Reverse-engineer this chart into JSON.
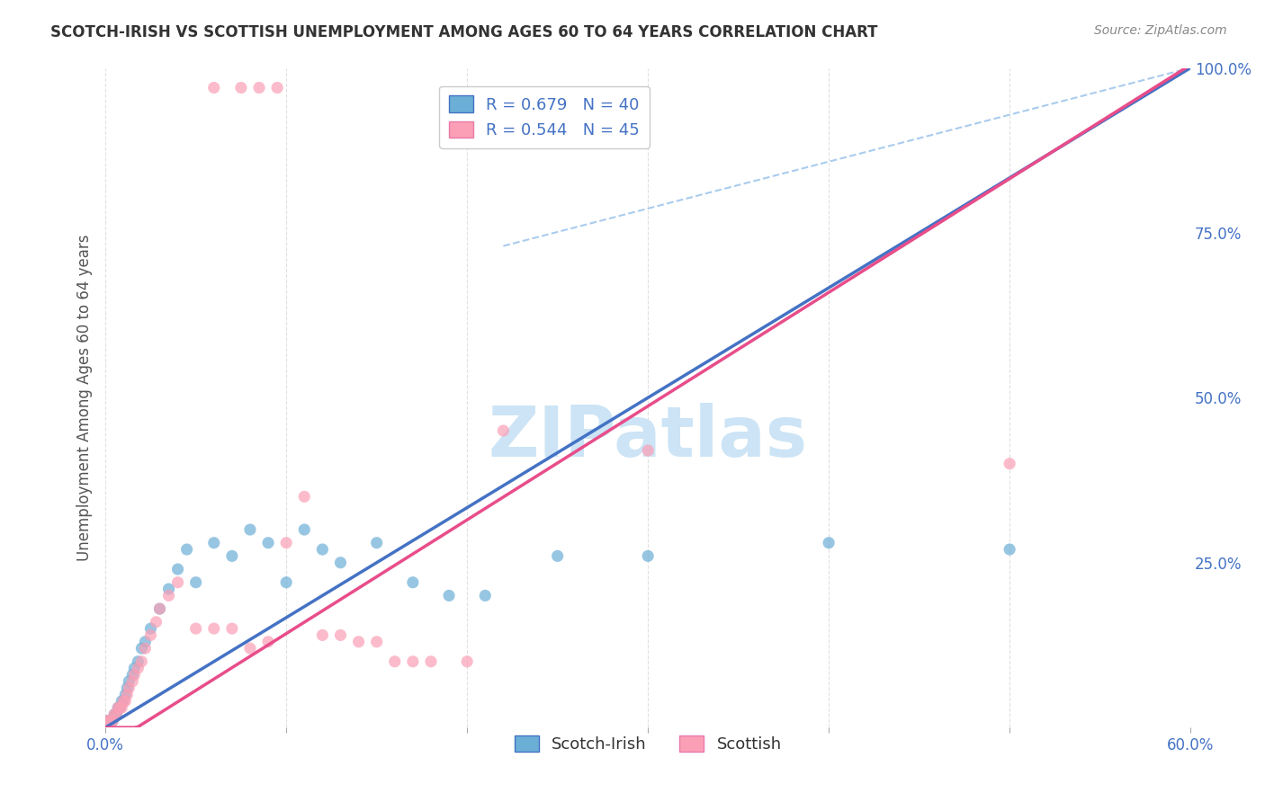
{
  "title": "SCOTCH-IRISH VS SCOTTISH UNEMPLOYMENT AMONG AGES 60 TO 64 YEARS CORRELATION CHART",
  "source": "Source: ZipAtlas.com",
  "ylabel": "Unemployment Among Ages 60 to 64 years",
  "xmin": 0.0,
  "xmax": 0.6,
  "ymin": 0.0,
  "ymax": 1.0,
  "blue_R": 0.679,
  "blue_N": 40,
  "pink_R": 0.544,
  "pink_N": 45,
  "blue_color": "#6baed6",
  "pink_color": "#fa9fb5",
  "blue_line_color": "#4472c4",
  "pink_line_color": "#e84d8a",
  "dashed_line_color": "#aaccee",
  "blue_scatter": [
    [
      0.001,
      0.01
    ],
    [
      0.002,
      0.01
    ],
    [
      0.003,
      0.01
    ],
    [
      0.004,
      0.01
    ],
    [
      0.005,
      0.02
    ],
    [
      0.006,
      0.02
    ],
    [
      0.007,
      0.03
    ],
    [
      0.008,
      0.03
    ],
    [
      0.009,
      0.04
    ],
    [
      0.01,
      0.04
    ],
    [
      0.011,
      0.05
    ],
    [
      0.012,
      0.06
    ],
    [
      0.013,
      0.07
    ],
    [
      0.015,
      0.08
    ],
    [
      0.016,
      0.09
    ],
    [
      0.018,
      0.1
    ],
    [
      0.02,
      0.12
    ],
    [
      0.022,
      0.13
    ],
    [
      0.025,
      0.15
    ],
    [
      0.03,
      0.18
    ],
    [
      0.035,
      0.21
    ],
    [
      0.04,
      0.24
    ],
    [
      0.045,
      0.27
    ],
    [
      0.05,
      0.22
    ],
    [
      0.06,
      0.28
    ],
    [
      0.07,
      0.26
    ],
    [
      0.08,
      0.3
    ],
    [
      0.09,
      0.28
    ],
    [
      0.1,
      0.22
    ],
    [
      0.11,
      0.3
    ],
    [
      0.12,
      0.27
    ],
    [
      0.13,
      0.25
    ],
    [
      0.15,
      0.28
    ],
    [
      0.17,
      0.22
    ],
    [
      0.19,
      0.2
    ],
    [
      0.21,
      0.2
    ],
    [
      0.25,
      0.26
    ],
    [
      0.3,
      0.26
    ],
    [
      0.4,
      0.28
    ],
    [
      0.5,
      0.27
    ]
  ],
  "pink_scatter": [
    [
      0.001,
      0.01
    ],
    [
      0.002,
      0.01
    ],
    [
      0.003,
      0.01
    ],
    [
      0.004,
      0.01
    ],
    [
      0.005,
      0.02
    ],
    [
      0.006,
      0.02
    ],
    [
      0.007,
      0.03
    ],
    [
      0.008,
      0.03
    ],
    [
      0.009,
      0.03
    ],
    [
      0.01,
      0.04
    ],
    [
      0.011,
      0.04
    ],
    [
      0.012,
      0.05
    ],
    [
      0.013,
      0.06
    ],
    [
      0.015,
      0.07
    ],
    [
      0.016,
      0.08
    ],
    [
      0.018,
      0.09
    ],
    [
      0.02,
      0.1
    ],
    [
      0.022,
      0.12
    ],
    [
      0.025,
      0.14
    ],
    [
      0.028,
      0.16
    ],
    [
      0.03,
      0.18
    ],
    [
      0.035,
      0.2
    ],
    [
      0.04,
      0.22
    ],
    [
      0.05,
      0.15
    ],
    [
      0.06,
      0.15
    ],
    [
      0.07,
      0.15
    ],
    [
      0.08,
      0.12
    ],
    [
      0.09,
      0.13
    ],
    [
      0.1,
      0.28
    ],
    [
      0.11,
      0.35
    ],
    [
      0.12,
      0.14
    ],
    [
      0.13,
      0.14
    ],
    [
      0.14,
      0.13
    ],
    [
      0.15,
      0.13
    ],
    [
      0.16,
      0.1
    ],
    [
      0.17,
      0.1
    ],
    [
      0.18,
      0.1
    ],
    [
      0.2,
      0.1
    ],
    [
      0.22,
      0.45
    ],
    [
      0.3,
      0.42
    ],
    [
      0.5,
      0.4
    ],
    [
      0.06,
      0.97
    ],
    [
      0.075,
      0.97
    ],
    [
      0.085,
      0.97
    ],
    [
      0.095,
      0.97
    ]
  ],
  "blue_line": [
    0.0,
    0.0,
    0.6,
    1.05
  ],
  "pink_line": [
    0.0,
    -0.02,
    0.6,
    1.02
  ],
  "background_color": "#ffffff",
  "grid_color": "#e0e0e0",
  "watermark_text": "ZIPatlas",
  "watermark_color": "#cce4f5"
}
